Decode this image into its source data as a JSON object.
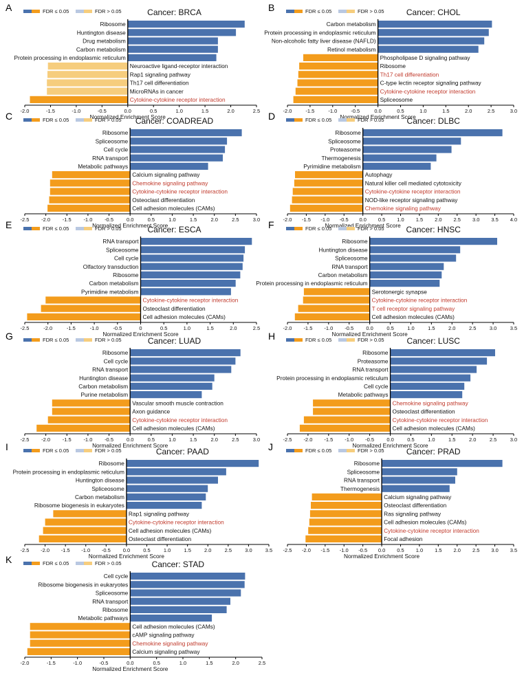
{
  "figure_title": "",
  "legend": {
    "sig_label": "FDR ≤ 0.05",
    "nonsig_label": "FDR > 0.05"
  },
  "colors": {
    "positive": "#4a72ad",
    "negative": "#f39c1c",
    "nonsig_negative": "#f6cd7d",
    "nonsig_positive": "#b9c8e1",
    "highlight_text": "#c0392b",
    "text": "#111111",
    "axis": "#000000"
  },
  "chart_data": [
    {
      "id": "A",
      "type": "bar",
      "title": "Cancer: BRCA",
      "xlabel": "Normalized Enrichment Score",
      "xlim": [
        -2.0,
        2.5
      ],
      "xticks": [
        -2.0,
        -1.5,
        -1.0,
        -0.5,
        0.0,
        0.5,
        1.0,
        1.5,
        2.0,
        2.5
      ],
      "xtick_labels": [
        "-2.0",
        "-1.5",
        "-1.0",
        "-0.5",
        "0.0",
        "0.5",
        "1.0",
        "1.5",
        "2.0",
        "2.5"
      ],
      "categories": [
        "Ribosome",
        "Huntington disease",
        "Drug metabolism",
        "Carbon metabolism",
        "Protein processing in endoplasmic reticulum",
        "Neuroactive ligand-receptor interaction",
        "Rap1 signaling pathway",
        "Th17 cell differentiation",
        "MicroRNAs in cancer",
        "Cytokine-cytokine receptor interaction"
      ],
      "values": [
        2.27,
        2.1,
        1.75,
        1.75,
        1.72,
        -1.55,
        -1.56,
        -1.57,
        -1.57,
        -1.9
      ],
      "significant": [
        true,
        true,
        true,
        true,
        true,
        false,
        false,
        false,
        false,
        true
      ],
      "highlighted": [
        false,
        false,
        false,
        false,
        false,
        false,
        false,
        false,
        false,
        true
      ]
    },
    {
      "id": "B",
      "type": "bar",
      "title": "Cancer: CHOL",
      "xlabel": "Normalized Enrichment Score",
      "xlim": [
        -2.0,
        3.0
      ],
      "xticks": [
        -2.0,
        -1.5,
        -1.0,
        -0.5,
        0.0,
        0.5,
        1.0,
        1.5,
        2.0,
        2.5,
        3.0
      ],
      "xtick_labels": [
        "-2.0",
        "-1.5",
        "-1.0",
        "-0.5",
        "0.0",
        "0.5",
        "1.0",
        "1.5",
        "2.0",
        "2.5",
        "3.0"
      ],
      "categories": [
        "Carbon metabolism",
        "Protein processing in endoplasmic reticulum",
        "Non-alcoholic fatty liver disease (NAFLD)",
        "Retinol metabolism",
        "Phospholipase D signaling pathway",
        "Ribosome",
        "Th17 cell differentiation",
        "C-type lectin receptor signaling pathway",
        "Cytokine-cytokine receptor interaction",
        "Spliceosome"
      ],
      "values": [
        2.52,
        2.45,
        2.35,
        2.22,
        -1.65,
        -1.74,
        -1.76,
        -1.78,
        -1.82,
        -1.87
      ],
      "significant": [
        true,
        true,
        true,
        true,
        true,
        true,
        true,
        true,
        true,
        true
      ],
      "highlighted": [
        false,
        false,
        false,
        false,
        false,
        false,
        true,
        false,
        true,
        false
      ]
    },
    {
      "id": "C",
      "type": "bar",
      "title": "Cancer: COADREAD",
      "xlabel": "Normalized Enrichment Score",
      "xlim": [
        -2.5,
        3.0
      ],
      "xticks": [
        -2.5,
        -2.0,
        -1.5,
        -1.0,
        -0.5,
        0.0,
        0.5,
        1.0,
        1.5,
        2.0,
        2.5,
        3.0
      ],
      "xtick_labels": [
        "-2.5",
        "-2.0",
        "-1.5",
        "-1.0",
        "-0.5",
        "0.0",
        "0.5",
        "1.0",
        "1.5",
        "2.0",
        "2.5",
        "3.0"
      ],
      "categories": [
        "Ribosome",
        "Spliceosome",
        "Cell cycle",
        "RNA transport",
        "Metabolic pathways",
        "Calcium signaling pathway",
        "Chemokine signaling pathway",
        "Cytokine-cytokine receptor interaction",
        "Osteoclast differentiation",
        "Cell adhesion molecules (CAMs)"
      ],
      "values": [
        2.65,
        2.3,
        2.25,
        2.2,
        1.85,
        -1.85,
        -1.9,
        -1.9,
        -1.92,
        -1.96
      ],
      "significant": [
        true,
        true,
        true,
        true,
        true,
        true,
        true,
        true,
        true,
        true
      ],
      "highlighted": [
        false,
        false,
        false,
        false,
        false,
        false,
        true,
        true,
        false,
        false
      ]
    },
    {
      "id": "D",
      "type": "bar",
      "title": "Cancer: DLBC",
      "xlabel": "Normalized Enrichment Score",
      "xlim": [
        -2.0,
        4.0
      ],
      "xticks": [
        -2.0,
        -1.5,
        -1.0,
        -0.5,
        0.0,
        0.5,
        1.0,
        1.5,
        2.0,
        2.5,
        3.0,
        3.5,
        4.0
      ],
      "xtick_labels": [
        "-2.0",
        "-1.5",
        "-1.0",
        "-0.5",
        "0.0",
        "0.5",
        "1.0",
        "1.5",
        "2.0",
        "2.5",
        "3.0",
        "3.5",
        "4.0"
      ],
      "categories": [
        "Ribosome",
        "Spliceosome",
        "Proteasome",
        "Thermogenesis",
        "Pyrimidine metabolism",
        "Autophagy",
        "Natural killer cell mediated cytotoxicity",
        "Cytokine-cytokine receptor interaction",
        "NOD-like receptor signaling pathway",
        "Chemokine signaling pathway"
      ],
      "values": [
        3.7,
        2.6,
        2.35,
        1.95,
        1.8,
        -1.8,
        -1.82,
        -1.86,
        -1.88,
        -1.93
      ],
      "significant": [
        true,
        true,
        true,
        true,
        true,
        true,
        true,
        true,
        true,
        true
      ],
      "highlighted": [
        false,
        false,
        false,
        false,
        false,
        false,
        false,
        true,
        false,
        true
      ]
    },
    {
      "id": "E",
      "type": "bar",
      "title": "Cancer: ESCA",
      "xlabel": "Normalized Enrichment Score",
      "xlim": [
        -2.5,
        2.5
      ],
      "xticks": [
        -2.5,
        -2.0,
        -1.5,
        -1.0,
        -0.5,
        0.0,
        0.5,
        1.0,
        1.5,
        2.0,
        2.5
      ],
      "xtick_labels": [
        "-2.5",
        "-2.0",
        "-1.5",
        "-1.0",
        "-0.5",
        "0",
        "0.5",
        "1.0",
        "1.5",
        "2.0",
        "2.5"
      ],
      "categories": [
        "RNA transport",
        "Spliceosome",
        "Cell cycle",
        "Olfactory transduction",
        "Ribosome",
        "Carbon metabolism",
        "Pyrimidine metabolism",
        "Cytokine-cytokine receptor interaction",
        "Osteoclast differentiation",
        "Cell adhesion molecules (CAMs)"
      ],
      "values": [
        2.4,
        2.25,
        2.22,
        2.2,
        2.15,
        2.05,
        1.95,
        -2.05,
        -2.15,
        -2.45
      ],
      "significant": [
        true,
        true,
        true,
        true,
        true,
        true,
        true,
        true,
        true,
        true
      ],
      "highlighted": [
        false,
        false,
        false,
        false,
        false,
        false,
        false,
        true,
        false,
        false
      ]
    },
    {
      "id": "F",
      "type": "bar",
      "title": "Cancer: HNSC",
      "xlabel": "Normalized Enrichment Score",
      "xlim": [
        -2.0,
        3.5
      ],
      "xticks": [
        -2.0,
        -1.5,
        -1.0,
        -0.5,
        0.0,
        0.5,
        1.0,
        1.5,
        2.0,
        2.5,
        3.0,
        3.5
      ],
      "xtick_labels": [
        "-2.0",
        "-1.5",
        "-1.0",
        "-0.5",
        "0.0",
        "0.5",
        "1.0",
        "1.5",
        "2.0",
        "2.5",
        "3.0",
        "3.5"
      ],
      "categories": [
        "Ribosome",
        "Huntington disease",
        "Spliceosome",
        "RNA transport",
        "Carbon metabolism",
        "Protein processing in endoplasmic reticulum",
        "Serotonergic synapse",
        "Cytokine-cytokine receptor interaction",
        "T cell receptor signaling pathway",
        "Cell adhesion molecules (CAMs)"
      ],
      "values": [
        3.1,
        2.2,
        2.1,
        1.8,
        1.75,
        1.7,
        -1.6,
        -1.62,
        -1.74,
        -1.82
      ],
      "significant": [
        true,
        true,
        true,
        true,
        true,
        true,
        true,
        true,
        true,
        true
      ],
      "highlighted": [
        false,
        false,
        false,
        false,
        false,
        false,
        false,
        true,
        true,
        false
      ]
    },
    {
      "id": "G",
      "type": "bar",
      "title": "Cancer: LUAD",
      "xlabel": "Normalized Enrichment Score",
      "xlim": [
        -2.5,
        3.0
      ],
      "xticks": [
        -2.5,
        -2.0,
        -1.5,
        -1.0,
        -0.5,
        0.0,
        0.5,
        1.0,
        1.5,
        2.0,
        2.5,
        3.0
      ],
      "xtick_labels": [
        "-2.5",
        "-2.0",
        "-1.5",
        "-1.0",
        "-0.5",
        "0.0",
        "0.5",
        "1.0",
        "1.5",
        "2.0",
        "2.5",
        "3.0"
      ],
      "categories": [
        "Ribosome",
        "Cell cycle",
        "RNA transport",
        "Huntington disease",
        "Carbon metabolism",
        "Purine metabolism",
        "Vascular smooth muscle contraction",
        "Axon guidance",
        "Cytokine-cytokine receptor interaction",
        "Cell adhesion molecules (CAMs)"
      ],
      "values": [
        2.62,
        2.5,
        2.4,
        2.0,
        1.95,
        1.7,
        -1.85,
        -1.85,
        -1.95,
        -2.22
      ],
      "significant": [
        true,
        true,
        true,
        true,
        true,
        true,
        true,
        true,
        true,
        true
      ],
      "highlighted": [
        false,
        false,
        false,
        false,
        false,
        false,
        false,
        false,
        true,
        false
      ]
    },
    {
      "id": "H",
      "type": "bar",
      "title": "Cancer: LUSC",
      "xlabel": "Normalized Enrichment Score",
      "xlim": [
        -2.5,
        3.0
      ],
      "xticks": [
        -2.5,
        -2.0,
        -1.5,
        -1.0,
        -0.5,
        0.0,
        0.5,
        1.0,
        1.5,
        2.0,
        2.5,
        3.0
      ],
      "xtick_labels": [
        "-2.5",
        "-2.0",
        "-1.5",
        "-1.0",
        "-0.5",
        "0.0",
        "0.5",
        "1.0",
        "1.5",
        "2.0",
        "2.5",
        "3.0"
      ],
      "categories": [
        "Ribosome",
        "Proteasome",
        "RNA transport",
        "Protein processing in endoplasmic reticulum",
        "Cell cycle",
        "Metabolic pathways",
        "Chemokine signaling pathway",
        "Osteoclast differentiation",
        "Cytokine-cytokine receptor interaction",
        "Cell adhesion molecules (CAMs)"
      ],
      "values": [
        2.55,
        2.35,
        2.1,
        1.95,
        1.8,
        1.75,
        -1.88,
        -1.88,
        -2.1,
        -2.2
      ],
      "significant": [
        true,
        true,
        true,
        true,
        true,
        true,
        true,
        true,
        true,
        true
      ],
      "highlighted": [
        false,
        false,
        false,
        false,
        false,
        false,
        true,
        false,
        true,
        false
      ]
    },
    {
      "id": "I",
      "type": "bar",
      "title": "Cancer: PAAD",
      "xlabel": "Normalized Enrichment Score",
      "xlim": [
        -2.5,
        3.5
      ],
      "xticks": [
        -2.5,
        -2.0,
        -1.5,
        -1.0,
        -0.5,
        0.0,
        0.5,
        1.0,
        1.5,
        2.0,
        2.5,
        3.0,
        3.5
      ],
      "xtick_labels": [
        "-2.5",
        "-2.0",
        "-1.5",
        "-1.0",
        "-0.5",
        "0.0",
        "0.5",
        "1.0",
        "1.5",
        "2.0",
        "2.5",
        "3.0",
        "3.5"
      ],
      "categories": [
        "Ribosome",
        "Protein processing in endoplasmic reticulum",
        "Huntington disease",
        "Spliceosome",
        "Carbon metabolism",
        "Ribosome biogenesis in eukaryotes",
        "Rap1 signaling pathway",
        "Cytokine-cytokine receptor interaction",
        "Cell adhesion molecules (CAMs)",
        "Osteoclast differentiation"
      ],
      "values": [
        3.25,
        2.45,
        2.25,
        2.0,
        1.95,
        1.85,
        -1.8,
        -2.0,
        -2.05,
        -2.15
      ],
      "significant": [
        true,
        true,
        true,
        true,
        true,
        true,
        true,
        true,
        true,
        true
      ],
      "highlighted": [
        false,
        false,
        false,
        false,
        false,
        false,
        false,
        true,
        false,
        false
      ]
    },
    {
      "id": "J",
      "type": "bar",
      "title": "Cancer: PRAD",
      "xlabel": "Normalized Enrichment Score",
      "xlim": [
        -2.5,
        3.5
      ],
      "xticks": [
        -2.5,
        -2.0,
        -1.5,
        -1.0,
        -0.5,
        0.0,
        0.5,
        1.0,
        1.5,
        2.0,
        2.5,
        3.0,
        3.5
      ],
      "xtick_labels": [
        "-2.5",
        "-2.0",
        "-1.5",
        "-1.0",
        "-0.5",
        "0.0",
        "0.5",
        "1.0",
        "1.5",
        "2.0",
        "2.5",
        "3.0",
        "3.5"
      ],
      "categories": [
        "Ribosome",
        "Spliceosome",
        "RNA transport",
        "Thermogenesis",
        "Calcium signaling pathway",
        "Osteoclast differentiation",
        "Ras signaling pathway",
        "Cell adhesion molecules (CAMs)",
        "Cytokine-cytokine receptor interaction",
        "Focal adhesion"
      ],
      "values": [
        3.2,
        2.0,
        1.95,
        1.8,
        -1.85,
        -1.88,
        -1.9,
        -1.92,
        -1.95,
        -2.02
      ],
      "significant": [
        true,
        true,
        true,
        true,
        true,
        true,
        true,
        true,
        true,
        true
      ],
      "highlighted": [
        false,
        false,
        false,
        false,
        false,
        false,
        false,
        false,
        true,
        false
      ]
    },
    {
      "id": "K",
      "type": "bar",
      "title": "Cancer: STAD",
      "xlabel": "Normalized Enrichment Score",
      "xlim": [
        -2.0,
        2.5
      ],
      "xticks": [
        -2.0,
        -1.5,
        -1.0,
        -0.5,
        0.0,
        0.5,
        1.0,
        1.5,
        2.0,
        2.5
      ],
      "xtick_labels": [
        "-2.0",
        "-1.5",
        "-1.0",
        "-0.5",
        "0.0",
        "0.5",
        "1.0",
        "1.5",
        "2.0",
        "2.5"
      ],
      "categories": [
        "Cell cycle",
        "Ribosome biogenesis in eukaryotes",
        "Spliceosome",
        "RNA transport",
        "Ribosome",
        "Metabolic pathways",
        "Cell adhesion molecules (CAMs)",
        "cAMP signaling pathway",
        "Chemokine signaling pathway",
        "Calcium signaling pathway"
      ],
      "values": [
        2.18,
        2.17,
        2.1,
        1.9,
        1.83,
        1.55,
        -1.9,
        -1.9,
        -1.9,
        -1.95
      ],
      "significant": [
        true,
        true,
        true,
        true,
        true,
        true,
        true,
        true,
        true,
        true
      ],
      "highlighted": [
        false,
        false,
        false,
        false,
        false,
        false,
        false,
        false,
        true,
        false
      ]
    }
  ]
}
